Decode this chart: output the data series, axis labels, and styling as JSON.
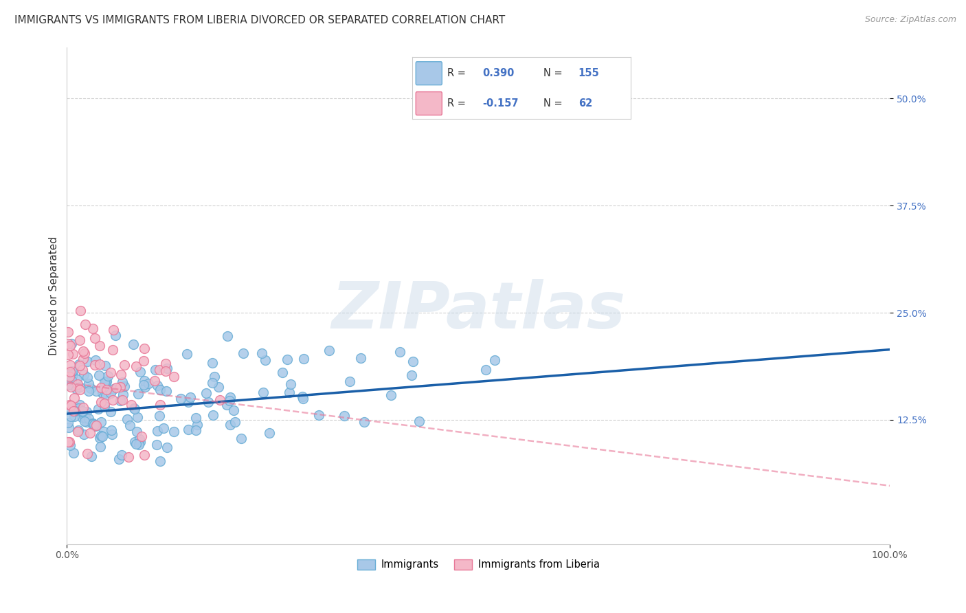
{
  "title": "IMMIGRANTS VS IMMIGRANTS FROM LIBERIA DIVORCED OR SEPARATED CORRELATION CHART",
  "source": "Source: ZipAtlas.com",
  "ylabel": "Divorced or Separated",
  "watermark": "ZIPatlas",
  "xlim": [
    0.0,
    1.0
  ],
  "ylim": [
    -0.02,
    0.56
  ],
  "xticks": [
    0.0,
    1.0
  ],
  "xticklabels": [
    "0.0%",
    "100.0%"
  ],
  "yticks": [
    0.125,
    0.25,
    0.375,
    0.5
  ],
  "yticklabels": [
    "12.5%",
    "25.0%",
    "37.5%",
    "50.0%"
  ],
  "blue_color": "#a8c8e8",
  "blue_edge": "#6aaed6",
  "pink_color": "#f4b8c8",
  "pink_edge": "#e87898",
  "blue_line_color": "#1a5fa8",
  "pink_line_color": "#e87898",
  "R_blue": 0.39,
  "N_blue": 155,
  "R_pink": -0.157,
  "N_pink": 62,
  "legend_labels": [
    "Immigrants",
    "Immigrants from Liberia"
  ],
  "grid_color": "#cccccc",
  "background_color": "#ffffff",
  "title_fontsize": 11,
  "axis_label_fontsize": 11,
  "tick_fontsize": 10,
  "blue_intercept": 0.132,
  "blue_slope": 0.075,
  "pink_intercept": 0.168,
  "pink_slope": -0.12,
  "seed": 42
}
